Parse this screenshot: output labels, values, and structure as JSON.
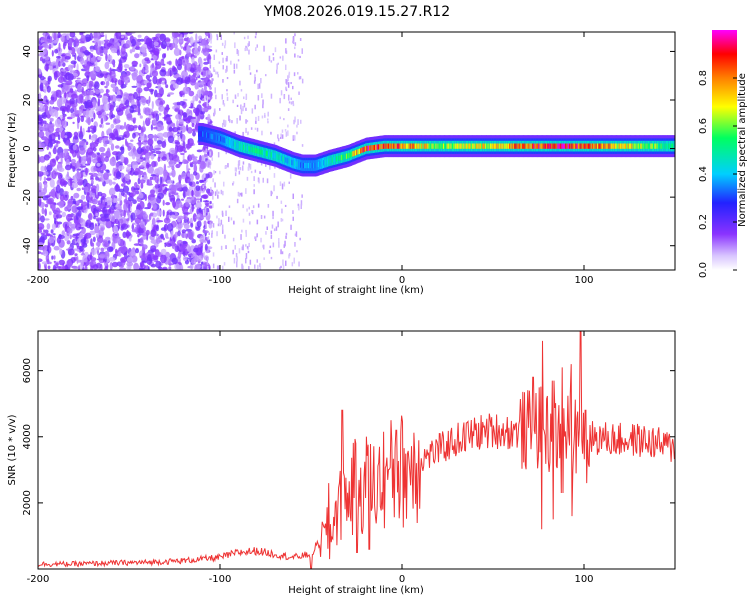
{
  "chart_data": [
    {
      "type": "heatmap",
      "title": "YM08.2026.019.15.27.R12",
      "xlabel": "Height of straight line (km)",
      "ylabel": "Frequency (Hz)",
      "xlim": [
        -200,
        150
      ],
      "ylim": [
        -50,
        48
      ],
      "xticks": [
        -200,
        -100,
        0,
        100
      ],
      "yticks": [
        -40,
        -20,
        0,
        20,
        40
      ],
      "colorbar": {
        "label": "Normalized spectral amplitude",
        "range": [
          0.0,
          1.0
        ],
        "ticks": [
          "0.0",
          "0.2",
          "0.4",
          "0.6",
          "0.8"
        ],
        "colors": [
          "#ffffff",
          "#c9b0ff",
          "#7a2cff",
          "#2222ff",
          "#00cfff",
          "#00ff60",
          "#ffff00",
          "#ff7f00",
          "#ff0000",
          "#ff00ff"
        ]
      },
      "ridge": {
        "description": "signal ridge frequency (Hz) vs height (km)",
        "x": [
          -110,
          -100,
          -90,
          -80,
          -70,
          -60,
          -55,
          -48,
          -40,
          -30,
          -20,
          -10,
          0,
          20,
          50,
          80,
          100,
          150
        ],
        "y": [
          6,
          4,
          1,
          -1,
          -3,
          -6,
          -7,
          -7,
          -5,
          -3,
          0,
          1,
          1,
          1,
          1,
          1,
          1,
          1
        ],
        "peak_amplitude": [
          0.3,
          0.35,
          0.45,
          0.5,
          0.45,
          0.4,
          0.35,
          0.35,
          0.45,
          0.6,
          0.9,
          0.85,
          0.8,
          0.6,
          0.7,
          0.9,
          0.85,
          0.5
        ]
      }
    },
    {
      "type": "line",
      "xlabel": "Height of straight line (km)",
      "ylabel": "SNR (10 * v/v)",
      "xlim": [
        -200,
        150
      ],
      "ylim": [
        0,
        7200
      ],
      "xticks": [
        -200,
        -100,
        0,
        100
      ],
      "yticks": [
        2000,
        4000,
        6000
      ],
      "series": [
        {
          "name": "SNR",
          "color": "#ee3333",
          "x": [
            -200,
            -180,
            -160,
            -140,
            -120,
            -100,
            -90,
            -80,
            -70,
            -60,
            -50,
            -40,
            -35,
            -30,
            -25,
            -20,
            -15,
            -10,
            0,
            10,
            20,
            30,
            40,
            50,
            60,
            70,
            75,
            80,
            85,
            90,
            95,
            100,
            110,
            120,
            130,
            140,
            150
          ],
          "y": [
            150,
            150,
            180,
            200,
            250,
            350,
            500,
            550,
            450,
            350,
            450,
            1200,
            1800,
            2200,
            2500,
            2600,
            2500,
            2800,
            3000,
            3300,
            3600,
            3900,
            4100,
            4200,
            4150,
            4200,
            4300,
            4100,
            4000,
            4200,
            4100,
            4000,
            3950,
            3900,
            3900,
            3800,
            3650
          ],
          "spikes": [
            {
              "x": -50,
              "lo": 0,
              "hi": 1300
            },
            {
              "x": -40,
              "lo": 300,
              "hi": 2600
            },
            {
              "x": -33,
              "lo": 0,
              "hi": 4800
            },
            {
              "x": -25,
              "lo": 500,
              "hi": 3800
            },
            {
              "x": -18,
              "lo": 600,
              "hi": 4000
            },
            {
              "x": -3,
              "lo": 1800,
              "hi": 4200
            },
            {
              "x": 72,
              "lo": 1800,
              "hi": 5800
            },
            {
              "x": 77,
              "lo": 1200,
              "hi": 6900
            },
            {
              "x": 83,
              "lo": 1500,
              "hi": 5700
            },
            {
              "x": 88,
              "lo": 2300,
              "hi": 6100
            },
            {
              "x": 93,
              "lo": 1600,
              "hi": 6200
            },
            {
              "x": 98,
              "lo": 800,
              "hi": 7200
            },
            {
              "x": 101,
              "lo": 2600,
              "hi": 4800
            }
          ]
        }
      ]
    }
  ]
}
